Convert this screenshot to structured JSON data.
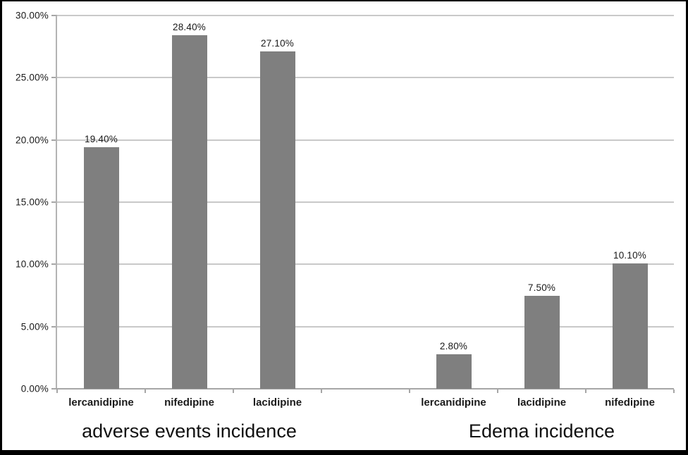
{
  "chart_data": {
    "type": "bar",
    "title": "",
    "xlabel": "",
    "ylabel": "",
    "ylim": [
      0,
      30
    ],
    "y_ticks": [
      "0.00%",
      "5.00%",
      "10.00%",
      "15.00%",
      "20.00%",
      "25.00%",
      "30.00%"
    ],
    "grid": true,
    "legend": "none",
    "bar_color": "#7f7f7f",
    "gridline_color": "#c9c9c9",
    "axis_color": "#a6a6a6",
    "groups": [
      {
        "title": "adverse events incidence",
        "categories": [
          "lercanidipine",
          "nifedipine",
          "lacidipine"
        ],
        "values": [
          19.4,
          28.4,
          27.1
        ],
        "value_labels": [
          "19.40%",
          "28.40%",
          "27.10%"
        ]
      },
      {
        "title": "Edema incidence",
        "categories": [
          "lercanidipine",
          "lacidipine",
          "nifedipine"
        ],
        "values": [
          2.8,
          7.5,
          10.1
        ],
        "value_labels": [
          "2.80%",
          "7.50%",
          "10.10%"
        ]
      }
    ]
  }
}
